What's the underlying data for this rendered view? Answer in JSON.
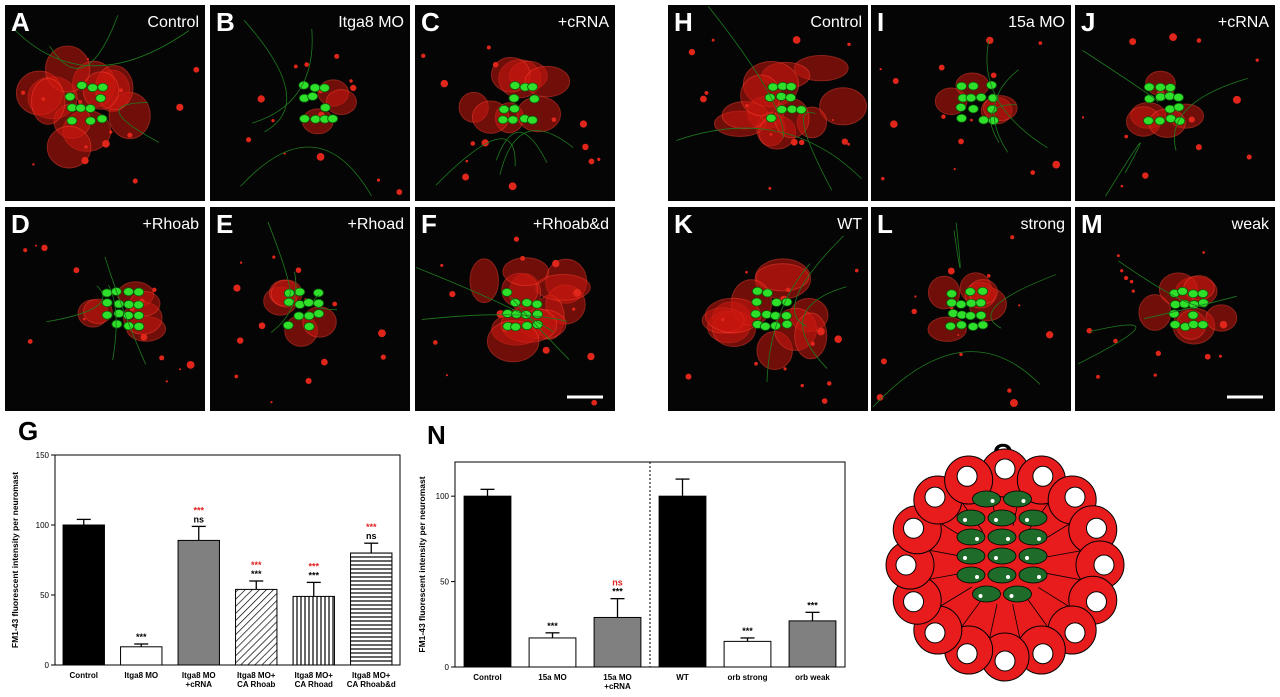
{
  "micrographs": [
    {
      "letter": "A",
      "label": "Control"
    },
    {
      "letter": "B",
      "label": "Itga8 MO"
    },
    {
      "letter": "C",
      "label": "+cRNA"
    },
    {
      "letter": "D",
      "label": "+Rhoab"
    },
    {
      "letter": "E",
      "label": "+Rhoad"
    },
    {
      "letter": "F",
      "label": "+Rhoab&d"
    },
    {
      "letter": "H",
      "label": "Control"
    },
    {
      "letter": "I",
      "label": "15a MO"
    },
    {
      "letter": "J",
      "label": "+cRNA"
    },
    {
      "letter": "K",
      "label": "WT"
    },
    {
      "letter": "L",
      "label": "strong"
    },
    {
      "letter": "M",
      "label": "weak"
    }
  ],
  "chart_data": [
    {
      "type": "bar",
      "panel": "G",
      "ylabel": "FM1-43 fluorescent intensity per neuromast",
      "categories": [
        [
          "Control"
        ],
        [
          "Itga8 MO"
        ],
        [
          "Itga8 MO",
          "+cRNA"
        ],
        [
          "Itga8 MO+",
          "CA Rhoab"
        ],
        [
          "Itga8 MO+",
          "CA Rhoad"
        ],
        [
          "Itga8 MO+",
          "CA Rhoab&d"
        ]
      ],
      "values": [
        100,
        13,
        89,
        54,
        49,
        80
      ],
      "errors": [
        4,
        2,
        10,
        6,
        10,
        7
      ],
      "fills": [
        "#000000",
        "#ffffff",
        "#808080",
        "diagonal",
        "vertical",
        "horizontal"
      ],
      "annotations": [
        [],
        [
          {
            "text": "***",
            "color": "#000000"
          }
        ],
        [
          {
            "text": "***",
            "color": "#e02020"
          },
          {
            "text": "ns",
            "color": "#000000"
          }
        ],
        [
          {
            "text": "***",
            "color": "#e02020"
          },
          {
            "text": "***",
            "color": "#000000"
          }
        ],
        [
          {
            "text": "***",
            "color": "#e02020"
          },
          {
            "text": "***",
            "color": "#000000"
          }
        ],
        [
          {
            "text": "***",
            "color": "#e02020"
          },
          {
            "text": "ns",
            "color": "#000000"
          }
        ]
      ],
      "ylim": [
        0,
        150
      ],
      "yticks": [
        0,
        50,
        100,
        150
      ]
    },
    {
      "type": "bar",
      "panel": "N",
      "ylabel": "FM1-43 fluorescent intensity per neuromast",
      "categories": [
        [
          "Control"
        ],
        [
          "15a MO"
        ],
        [
          "15a MO",
          "+cRNA"
        ],
        [
          "WT"
        ],
        [
          "orb strong"
        ],
        [
          "orb weak"
        ]
      ],
      "values": [
        100,
        17,
        29,
        100,
        15,
        27
      ],
      "errors": [
        4,
        3,
        11,
        10,
        2,
        5
      ],
      "fills": [
        "#000000",
        "#ffffff",
        "#808080",
        "#000000",
        "#ffffff",
        "#808080"
      ],
      "annotations": [
        [],
        [
          {
            "text": "***",
            "color": "#000000"
          }
        ],
        [
          {
            "text": "ns",
            "color": "#e02020"
          },
          {
            "text": "***",
            "color": "#000000"
          }
        ],
        [],
        [
          {
            "text": "***",
            "color": "#000000"
          }
        ],
        [
          {
            "text": "***",
            "color": "#000000"
          }
        ]
      ],
      "ylim": [
        0,
        120
      ],
      "yticks": [
        0,
        50,
        100
      ]
    }
  ],
  "diagram": {
    "letter": "O"
  }
}
